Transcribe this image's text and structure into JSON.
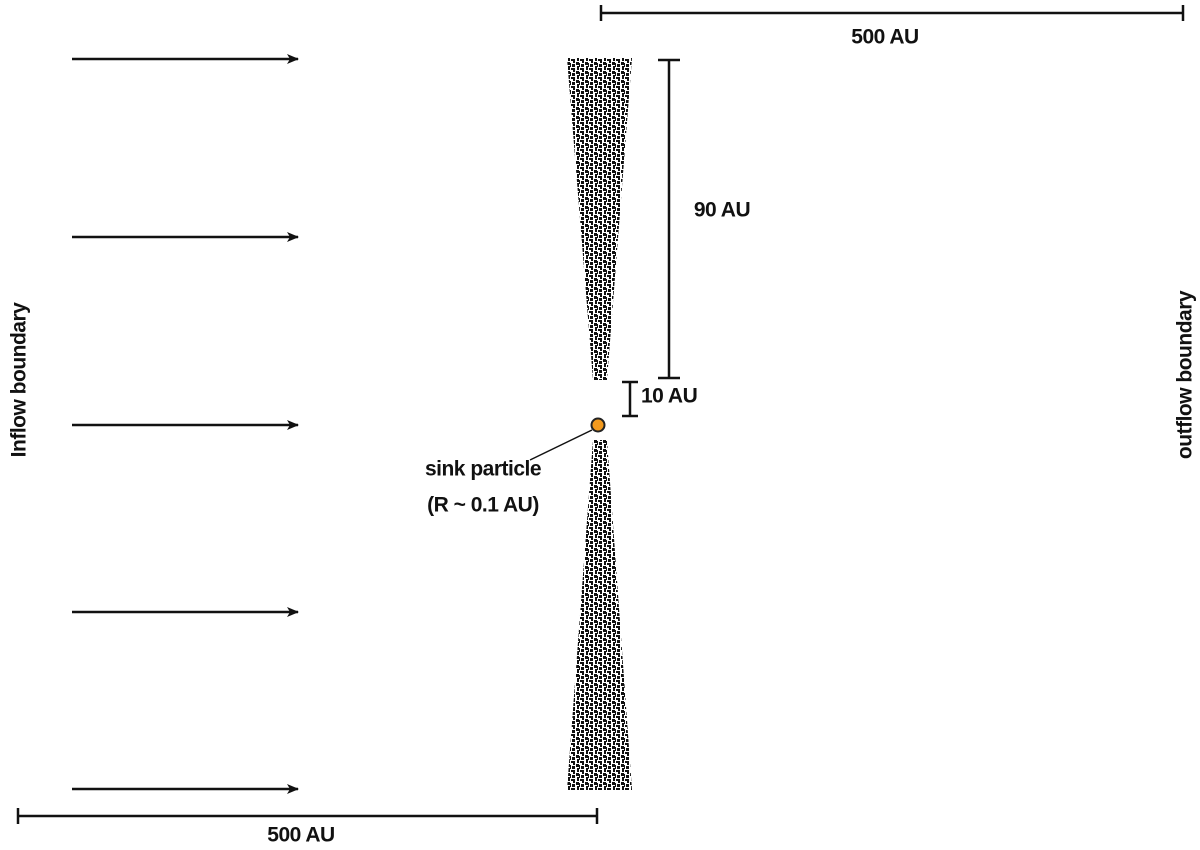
{
  "labels": {
    "top_scale": "500 AU",
    "bottom_scale": "500 AU",
    "gap_height": "90 AU",
    "gap_small": "10 AU",
    "sink_name": "sink particle",
    "sink_radius": "(R ~ 0.1 AU)",
    "left_boundary": "Inflow boundary",
    "right_boundary": "outflow boundary"
  }
}
